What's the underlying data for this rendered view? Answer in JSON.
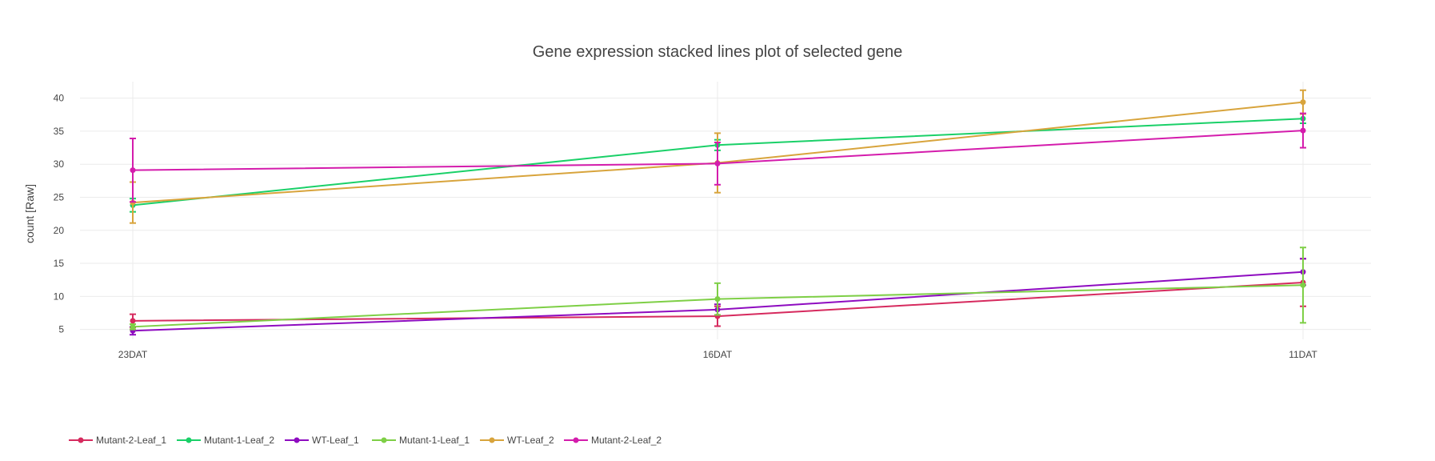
{
  "chart_data": {
    "type": "line",
    "title": "Gene expression stacked lines plot of selected gene",
    "xlabel": "",
    "ylabel": "count [Raw]",
    "categories": [
      "23DAT",
      "16DAT",
      "11DAT"
    ],
    "ylim": [
      3.5,
      42.5
    ],
    "yticks": [
      5,
      10,
      15,
      20,
      25,
      30,
      35,
      40
    ],
    "grid": true,
    "legend_position": "bottom-left",
    "series": [
      {
        "name": "Mutant-2-Leaf_1",
        "color": "#d62a5e",
        "values": [
          6.3,
          7.0,
          12.1
        ],
        "error": [
          1.0,
          1.5,
          3.6
        ]
      },
      {
        "name": "Mutant-1-Leaf_2",
        "color": "#1ad068",
        "values": [
          23.8,
          32.9,
          36.9
        ],
        "error": [
          1.0,
          0.8,
          0.7
        ]
      },
      {
        "name": "WT-Leaf_1",
        "color": "#8e0cc0",
        "values": [
          4.8,
          8.0,
          13.7
        ],
        "error": [
          0.6,
          0.8,
          2.0
        ]
      },
      {
        "name": "Mutant-1-Leaf_1",
        "color": "#7ecf46",
        "values": [
          5.4,
          9.6,
          11.7
        ],
        "error": [
          0.4,
          2.4,
          5.7
        ]
      },
      {
        "name": "WT-Leaf_2",
        "color": "#d8a43c",
        "values": [
          24.2,
          30.2,
          39.4
        ],
        "error": [
          3.1,
          4.5,
          1.8
        ]
      },
      {
        "name": "Mutant-2-Leaf_2",
        "color": "#d41cac",
        "values": [
          29.1,
          30.1,
          35.1
        ],
        "error": [
          4.8,
          3.2,
          2.6
        ]
      }
    ]
  }
}
